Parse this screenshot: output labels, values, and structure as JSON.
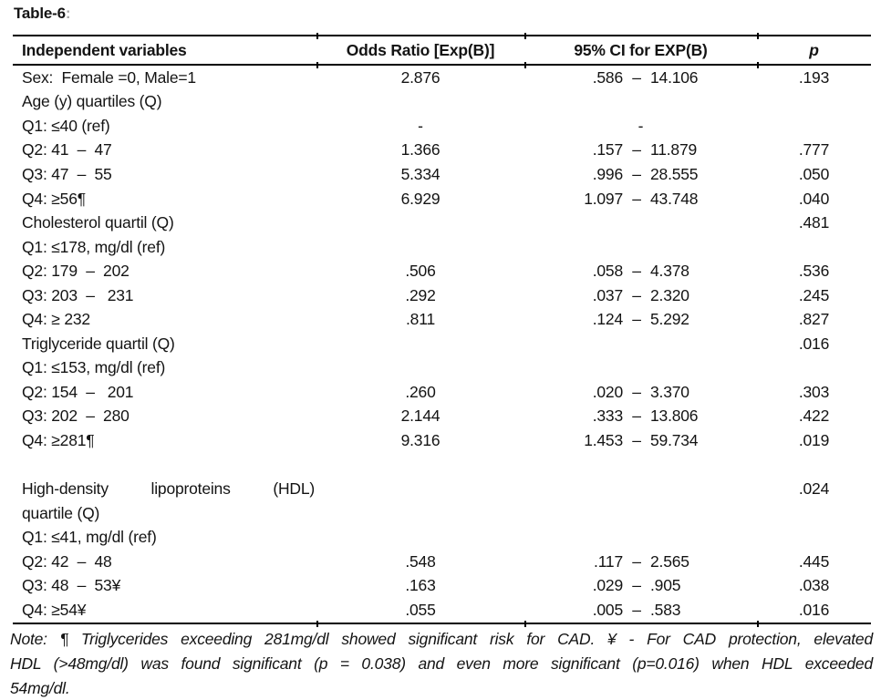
{
  "colors": {
    "background": "#ffffff",
    "text": "#141414",
    "rule": "#000000",
    "title_colon": "#a6a6a6"
  },
  "title": {
    "text": "Table-6",
    "colon": ":"
  },
  "table": {
    "columns": [
      "Independent variables",
      "Odds Ratio [Exp(B)]",
      "95% CI for EXP(B)",
      "p"
    ],
    "ci_dash": "–",
    "rows": [
      {
        "label": "Sex:  Female =0, Male=1",
        "or": "2.876",
        "ci_lo": ".586",
        "ci_hi": "14.106",
        "p": ".193"
      },
      {
        "label": "Age (y) quartiles (Q)"
      },
      {
        "label": "Q1: ≤40 (ref)",
        "or": "-",
        "ci_center": "-"
      },
      {
        "label": "Q2: 41  –  47",
        "or": "1.366",
        "ci_lo": ".157",
        "ci_hi": "11.879",
        "p": ".777"
      },
      {
        "label": "Q3: 47  –  55",
        "or": "5.334",
        "ci_lo": ".996",
        "ci_hi": "28.555",
        "p": ".050"
      },
      {
        "label": "Q4: ≥56¶",
        "or": "6.929",
        "ci_lo": "1.097",
        "ci_hi": "43.748",
        "p": ".040"
      },
      {
        "label": "Cholesterol quartil (Q)",
        "p": ".481"
      },
      {
        "label": "Q1: ≤178, mg/dl (ref)"
      },
      {
        "label": "Q2: 179  –  202",
        "or": ".506",
        "ci_lo": ".058",
        "ci_hi": "4.378",
        "p": ".536"
      },
      {
        "label": "Q3: 203  –   231",
        "or": ".292",
        "ci_lo": ".037",
        "ci_hi": "2.320",
        "p": ".245"
      },
      {
        "label": "Q4: ≥ 232",
        "or": ".811",
        "ci_lo": ".124",
        "ci_hi": "5.292",
        "p": ".827"
      },
      {
        "label": "Triglyceride quartil (Q)",
        "p": ".016"
      },
      {
        "label": "Q1: ≤153, mg/dl (ref)"
      },
      {
        "label": "Q2: 154  –   201",
        "or": ".260",
        "ci_lo": ".020",
        "ci_hi": "3.370",
        "p": ".303"
      },
      {
        "label": "Q3: 202  –  280",
        "or": "2.144",
        "ci_lo": ".333",
        "ci_hi": "13.806",
        "p": ".422"
      },
      {
        "label": "Q4: ≥281¶",
        "or": "9.316",
        "ci_lo": "1.453",
        "ci_hi": "59.734",
        "p": ".019"
      },
      {
        "label": ""
      },
      {
        "label": "High-density lipoproteins (HDL)",
        "p": ".024",
        "justify": true
      },
      {
        "label": "quartile (Q)"
      },
      {
        "label": "Q1: ≤41, mg/dl (ref)"
      },
      {
        "label": "Q2: 42  –  48",
        "or": ".548",
        "ci_lo": ".117",
        "ci_hi": "2.565",
        "p": ".445"
      },
      {
        "label": "Q3: 48  –  53¥",
        "or": ".163",
        "ci_lo": ".029",
        "ci_hi": ".905",
        "p": ".038"
      },
      {
        "label": "Q4: ≥54¥",
        "or": ".055",
        "ci_lo": ".005",
        "ci_hi": ".583",
        "p": ".016"
      }
    ]
  },
  "note": {
    "lines": [
      "Note: ¶ Triglycerides exceeding 281mg/dl showed significant risk for CAD.  ¥ - For CAD protection, elevated",
      "HDL (>48mg/dl) was found significant (p = 0.038) and even more significant (p=0.016) when HDL exceeded",
      "54mg/dl."
    ]
  }
}
